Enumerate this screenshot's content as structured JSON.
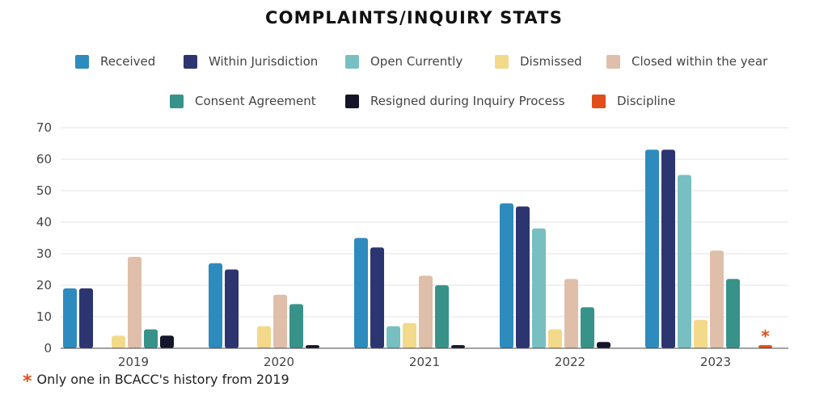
{
  "chart_data": {
    "type": "bar",
    "title": "COMPLAINTS/INQUIRY STATS",
    "categories": [
      "2019",
      "2020",
      "2021",
      "2022",
      "2023"
    ],
    "ylim": [
      0,
      70
    ],
    "yticks": [
      0,
      10,
      20,
      30,
      40,
      50,
      60,
      70
    ],
    "grid": true,
    "legend_position": "top",
    "series": [
      {
        "name": "Received",
        "color": "#2e8bbd",
        "values": [
          19,
          27,
          35,
          46,
          63
        ]
      },
      {
        "name": "Within Jurisdiction",
        "color": "#2d3570",
        "values": [
          19,
          25,
          32,
          45,
          63
        ]
      },
      {
        "name": "Open Currently",
        "color": "#78bfc1",
        "values": [
          null,
          null,
          7,
          38,
          55
        ]
      },
      {
        "name": "Dismissed",
        "color": "#f3d98a",
        "values": [
          4,
          7,
          8,
          6,
          9
        ]
      },
      {
        "name": "Closed within the year",
        "color": "#dfbfaa",
        "values": [
          29,
          17,
          23,
          22,
          31
        ]
      },
      {
        "name": "Consent Agreement",
        "color": "#37938a",
        "values": [
          6,
          14,
          20,
          13,
          22
        ]
      },
      {
        "name": "Resigned during Inquiry Process",
        "color": "#141528",
        "values": [
          4,
          1,
          1,
          2,
          null
        ]
      },
      {
        "name": "Discipline",
        "color": "#e04e1c",
        "values": [
          null,
          null,
          null,
          null,
          1
        ]
      }
    ],
    "annotations": [
      {
        "category": "2023",
        "series": "Discipline",
        "marker": "*"
      }
    ],
    "footnote": {
      "marker": "*",
      "text": "Only one in BCACC's history from 2019"
    }
  }
}
